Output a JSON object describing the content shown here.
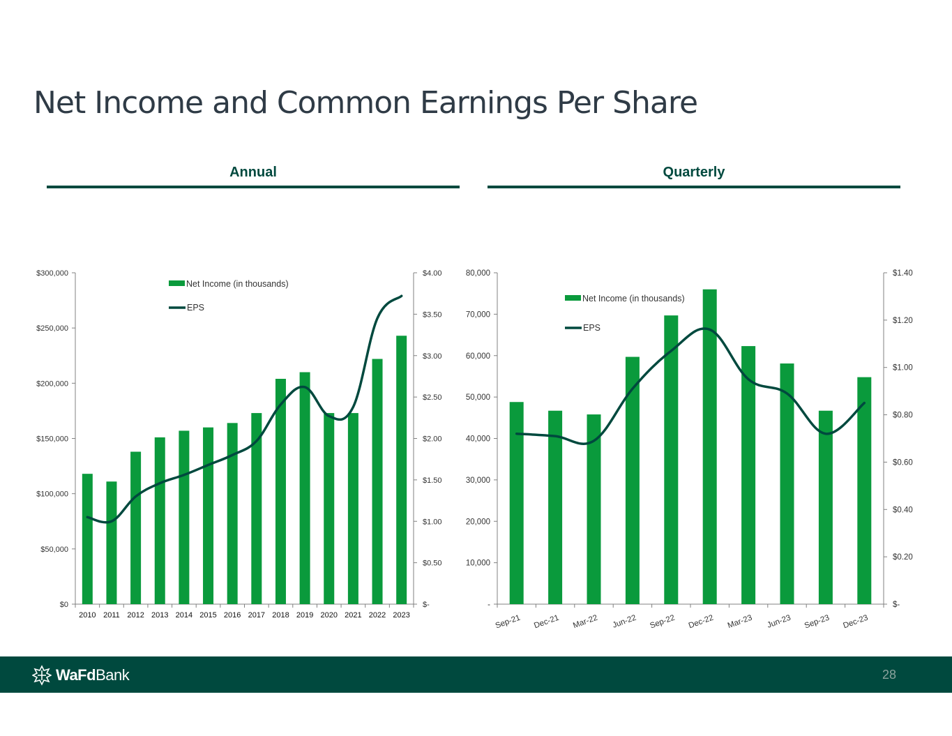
{
  "page": {
    "title": "Net Income and Common Earnings Per Share",
    "annual_heading": "Annual",
    "quarterly_heading": "Quarterly",
    "page_number": "28",
    "logo_bold": "WaFd",
    "logo_regular": "Bank"
  },
  "colors": {
    "bar": "#0a9a3c",
    "line": "#00493e",
    "heading": "#00493e",
    "footer": "#00493e",
    "axis": "#808080"
  },
  "chart_data": [
    {
      "id": "annual",
      "type": "bar",
      "categories": [
        "2010",
        "2011",
        "2012",
        "2013",
        "2014",
        "2015",
        "2016",
        "2017",
        "2018",
        "2019",
        "2020",
        "2021",
        "2022",
        "2023"
      ],
      "series": [
        {
          "name": "Net Income (in thousands)",
          "type": "bar",
          "axis": "left",
          "values": [
            118000,
            111000,
            138000,
            151000,
            157000,
            160000,
            164000,
            173000,
            204000,
            210000,
            173000,
            173000,
            222000,
            243000
          ]
        },
        {
          "name": "EPS",
          "type": "line",
          "axis": "right",
          "values": [
            1.05,
            1.0,
            1.3,
            1.46,
            1.56,
            1.68,
            1.8,
            1.97,
            2.41,
            2.62,
            2.27,
            2.38,
            3.45,
            3.72
          ]
        }
      ],
      "y_left": {
        "min": 0,
        "max": 300000,
        "ticks": [
          0,
          50000,
          100000,
          150000,
          200000,
          250000,
          300000
        ],
        "tick_labels": [
          "$0",
          "$50,000",
          "$100,000",
          "$150,000",
          "$200,000",
          "$250,000",
          "$300,000"
        ]
      },
      "y_right": {
        "min": 0,
        "max": 4,
        "ticks": [
          0,
          0.5,
          1,
          1.5,
          2,
          2.5,
          3,
          3.5,
          4
        ],
        "tick_labels": [
          "$-",
          "$0.50",
          "$1.00",
          "$1.50",
          "$2.00",
          "$2.50",
          "$3.00",
          "$3.50",
          "$4.00"
        ]
      },
      "legend": {
        "placement": "top-center"
      },
      "grid": false
    },
    {
      "id": "quarterly",
      "type": "bar",
      "categories": [
        "Sep-21",
        "Dec-21",
        "Mar-22",
        "Jun-22",
        "Sep-22",
        "Dec-22",
        "Mar-23",
        "Jun-23",
        "Sep-23",
        "Dec-23"
      ],
      "series": [
        {
          "name": "Net Income (in thousands)",
          "type": "bar",
          "axis": "left",
          "values": [
            48800,
            46700,
            45800,
            59700,
            69700,
            76000,
            62300,
            58100,
            46700,
            54800
          ]
        },
        {
          "name": "EPS",
          "type": "line",
          "axis": "right",
          "values": [
            0.72,
            0.71,
            0.69,
            0.91,
            1.07,
            1.16,
            0.95,
            0.89,
            0.72,
            0.85
          ]
        }
      ],
      "y_left": {
        "min": 0,
        "max": 80000,
        "ticks": [
          0,
          10000,
          20000,
          30000,
          40000,
          50000,
          60000,
          70000,
          80000
        ],
        "tick_labels": [
          "-",
          "10,000",
          "20,000",
          "30,000",
          "40,000",
          "50,000",
          "60,000",
          "70,000",
          "80,000"
        ]
      },
      "y_right": {
        "min": 0,
        "max": 1.4,
        "ticks": [
          0,
          0.2,
          0.4,
          0.6,
          0.8,
          1.0,
          1.2,
          1.4
        ],
        "tick_labels": [
          "$-",
          "$0.20",
          "$0.40",
          "$0.60",
          "$0.80",
          "$1.00",
          "$1.20",
          "$1.40"
        ]
      },
      "legend": {
        "placement": "top-left"
      },
      "grid": false
    }
  ]
}
